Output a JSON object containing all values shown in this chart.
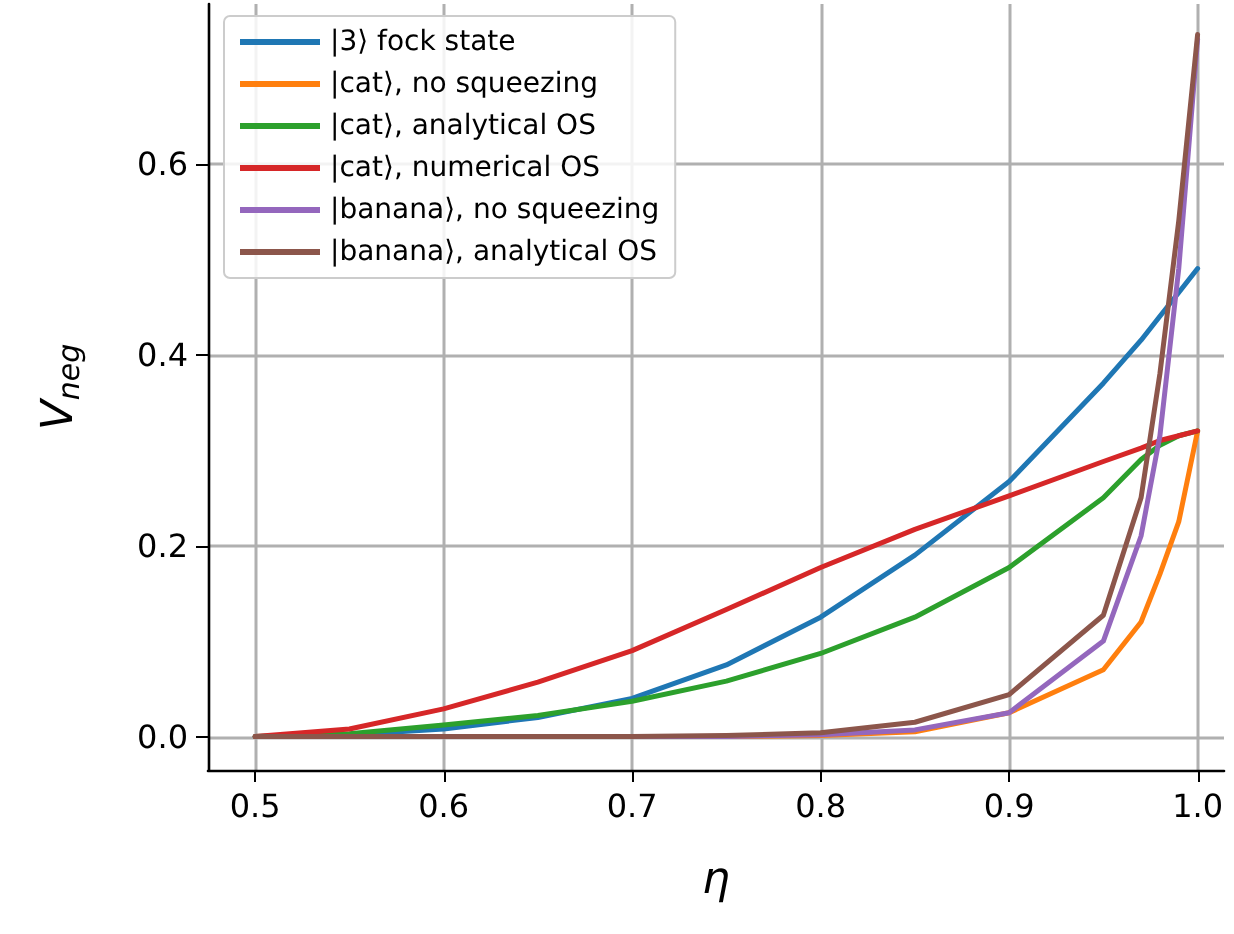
{
  "chart_data": {
    "type": "line",
    "xlabel": "η",
    "ylabel": "V$_{neg}$",
    "x": [
      0.5,
      0.55,
      0.6,
      0.65,
      0.7,
      0.75,
      0.8,
      0.85,
      0.9,
      0.95,
      0.97,
      0.98,
      0.99,
      1.0
    ],
    "series": [
      {
        "name": "|3⟩ fock state",
        "color": "#1f77b4",
        "values": [
          0,
          0.002,
          0.008,
          0.02,
          0.04,
          0.075,
          0.125,
          0.19,
          0.267,
          0.37,
          0.415,
          0.44,
          0.465,
          0.49
        ]
      },
      {
        "name": "|cat⟩, no squeezing",
        "color": "#ff7f0e",
        "values": [
          null,
          null,
          null,
          null,
          null,
          0,
          0.001,
          0.005,
          0.025,
          0.07,
          0.12,
          0.17,
          0.225,
          0.32
        ]
      },
      {
        "name": "|cat⟩, analytical OS",
        "color": "#2ca02c",
        "values": [
          0,
          0.003,
          0.012,
          0.022,
          0.037,
          0.058,
          0.087,
          0.125,
          0.177,
          0.25,
          0.29,
          0.305,
          0.315,
          0.32
        ]
      },
      {
        "name": "|cat⟩, numerical OS",
        "color": "#d62728",
        "values": [
          0,
          0.008,
          0.029,
          0.057,
          0.09,
          0.133,
          0.177,
          0.217,
          0.252,
          0.288,
          0.302,
          0.31,
          0.315,
          0.32
        ]
      },
      {
        "name": "|banana⟩, no squeezing",
        "color": "#9467bd",
        "values": [
          null,
          null,
          null,
          null,
          0,
          0,
          0.002,
          0.007,
          0.025,
          0.1,
          0.21,
          0.315,
          0.49,
          0.73
        ]
      },
      {
        "name": "|banana⟩, analytical OS",
        "color": "#8c564b",
        "values": [
          0,
          0,
          0,
          0,
          0,
          0.001,
          0.004,
          0.015,
          0.044,
          0.127,
          0.25,
          0.38,
          0.54,
          0.735
        ]
      }
    ],
    "xlim": [
      0.475,
      1.014
    ],
    "ylim": [
      -0.035,
      0.767
    ],
    "xticks": [
      0.5,
      0.6,
      0.7,
      0.8,
      0.9,
      {
        "value": 1.0,
        "label": "1.0"
      }
    ],
    "yticks": [
      {
        "value": 0,
        "label": "0.0"
      },
      0.2,
      0.4,
      0.6
    ],
    "grid": true,
    "legend": "top left",
    "marker": "none",
    "line_style": "solid"
  }
}
